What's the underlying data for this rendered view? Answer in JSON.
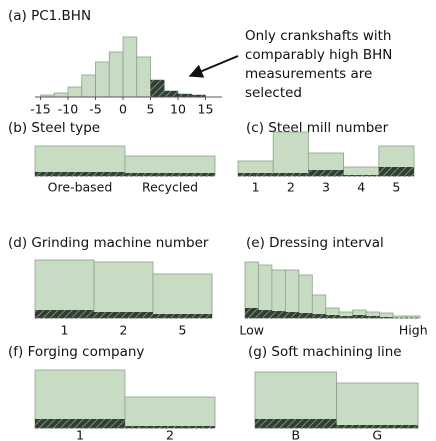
{
  "chart_data": [
    {
      "type": "histogram",
      "title": "(a) PC1.BHN",
      "bins": [
        -15,
        -12.5,
        -10,
        -7.5,
        -5,
        -2.5,
        0,
        2.5,
        5,
        7.5,
        10,
        12.5,
        15
      ],
      "series": [
        {
          "color": "#c8dcc4",
          "values": [
            2,
            4,
            10,
            22,
            35,
            45,
            60,
            40,
            17,
            6,
            3,
            2
          ]
        },
        {
          "color": "#2f3f33",
          "values": [
            0,
            0,
            0,
            0,
            0,
            0,
            0,
            0,
            17,
            6,
            3,
            2
          ]
        }
      ],
      "xlim": [
        -16,
        18
      ],
      "xticks": [
        -15,
        -10,
        -5,
        0,
        5,
        10,
        15
      ],
      "ylim": [
        0,
        64
      ],
      "annotation": [
        "Only crankshafts with",
        "comparably high BHN",
        "measurements are",
        "selected"
      ]
    },
    {
      "type": "bar",
      "title": "(b) Steel type",
      "categories": [
        "Ore-based",
        "Recycled"
      ],
      "series": [
        {
          "color": "#c8dcc4",
          "values": [
            30,
            20
          ]
        },
        {
          "color": "#2f3f33",
          "values": [
            4,
            3
          ]
        }
      ],
      "ylim": [
        0,
        38
      ]
    },
    {
      "type": "bar",
      "title": "(c) Steel mill number",
      "categories": [
        "1",
        "2",
        "3",
        "4",
        "5"
      ],
      "series": [
        {
          "color": "#c8dcc4",
          "values": [
            15,
            44,
            23,
            9,
            30
          ]
        },
        {
          "color": "#2f3f33",
          "values": [
            3,
            3,
            6,
            1,
            9
          ]
        }
      ],
      "ylim": [
        0,
        48
      ]
    },
    {
      "type": "bar",
      "title": "(d) Grinding machine number",
      "categories": [
        "1",
        "2",
        "5"
      ],
      "series": [
        {
          "color": "#c8dcc4",
          "values": [
            58,
            56,
            44
          ]
        },
        {
          "color": "#2f3f33",
          "values": [
            8,
            6,
            4
          ]
        }
      ],
      "ylim": [
        0,
        64
      ]
    },
    {
      "type": "bar",
      "title": "(e) Dressing interval",
      "categories": [
        "Low",
        null,
        null,
        null,
        null,
        null,
        null,
        null,
        null,
        null,
        null,
        null,
        "High"
      ],
      "series": [
        {
          "color": "#c8dcc4",
          "values": [
            56,
            53,
            48,
            48,
            43,
            23,
            10,
            6,
            8,
            6,
            5,
            2,
            2
          ]
        },
        {
          "color": "#2f3f33",
          "values": [
            10,
            8,
            7,
            6,
            5,
            4,
            3,
            2,
            3,
            2,
            1,
            0,
            0
          ]
        }
      ],
      "ylim": [
        0,
        64
      ]
    },
    {
      "type": "bar",
      "title": "(f) Forging company",
      "categories": [
        "1",
        "2"
      ],
      "series": [
        {
          "color": "#c8dcc4",
          "values": [
            58,
            31
          ]
        },
        {
          "color": "#2f3f33",
          "values": [
            9,
            2
          ]
        }
      ],
      "ylim": [
        0,
        64
      ]
    },
    {
      "type": "bar",
      "title": "(g) Soft machining line",
      "categories": [
        "B",
        "G"
      ],
      "series": [
        {
          "color": "#c8dcc4",
          "values": [
            56,
            45
          ]
        },
        {
          "color": "#2f3f33",
          "values": [
            9,
            3
          ]
        }
      ],
      "ylim": [
        0,
        64
      ]
    }
  ]
}
